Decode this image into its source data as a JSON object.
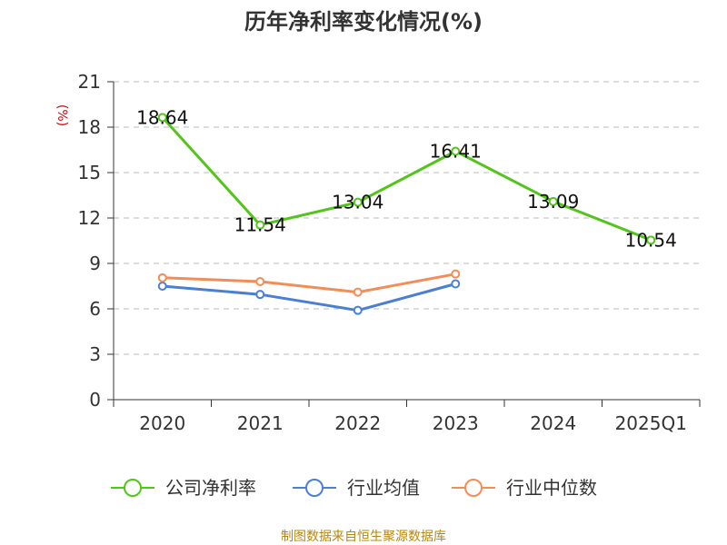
{
  "chart_data": {
    "type": "line",
    "title": "历年净利率变化情况(%)",
    "ylabel": "(%)",
    "categories": [
      "2020",
      "2021",
      "2022",
      "2023",
      "2024",
      "2025Q1"
    ],
    "yticks": [
      "0",
      "3",
      "6",
      "9",
      "12",
      "15",
      "18",
      "21"
    ],
    "ylim": [
      0,
      21
    ],
    "grid": true,
    "legend_position": "bottom",
    "series": [
      {
        "name": "公司净利率",
        "color": "#52c41a",
        "values": [
          18.64,
          11.54,
          13.04,
          16.41,
          13.09,
          10.54
        ],
        "labels": [
          "18.64",
          "11.54",
          "13.04",
          "16.41",
          "13.09",
          "10.54"
        ]
      },
      {
        "name": "行业均值",
        "color": "#4a7fd4",
        "values": [
          7.5,
          6.95,
          5.9,
          7.65,
          null,
          null
        ]
      },
      {
        "name": "行业中位数",
        "color": "#f58c57",
        "values": [
          8.05,
          7.8,
          7.1,
          8.3,
          null,
          null
        ]
      }
    ],
    "source": "制图数据来自恒生聚源数据库"
  }
}
